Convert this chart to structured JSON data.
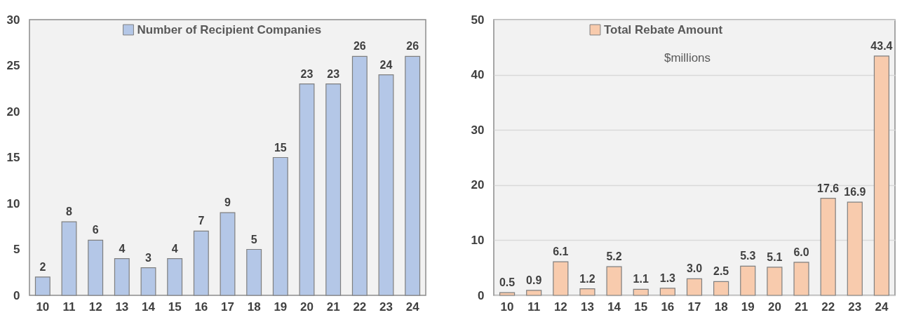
{
  "chart_data": [
    {
      "type": "bar",
      "categories": [
        "10",
        "11",
        "12",
        "13",
        "14",
        "15",
        "16",
        "17",
        "18",
        "19",
        "20",
        "21",
        "22",
        "23",
        "24"
      ],
      "series": [
        {
          "name": "Number of Recipient Companies",
          "color": "#b4c7e7",
          "values": [
            2,
            8,
            6,
            4,
            3,
            4,
            7,
            9,
            5,
            15,
            23,
            23,
            26,
            24,
            26
          ]
        }
      ],
      "ylim": [
        0,
        30
      ],
      "yticks": [
        0,
        5,
        10,
        15,
        20,
        25,
        30
      ],
      "grid": false,
      "legend": "top",
      "data_labels": true
    },
    {
      "type": "bar",
      "categories": [
        "10",
        "11",
        "12",
        "13",
        "14",
        "15",
        "16",
        "17",
        "18",
        "19",
        "20",
        "21",
        "22",
        "23",
        "24"
      ],
      "series": [
        {
          "name": "Total Rebate Amount",
          "color": "#f8cbad",
          "values": [
            0.5,
            0.9,
            6.1,
            1.2,
            5.2,
            1.1,
            1.3,
            3.0,
            2.5,
            5.3,
            5.1,
            6.0,
            17.6,
            16.9,
            43.4
          ],
          "value_labels": [
            "0.5",
            "0.9",
            "6.1",
            "1.2",
            "5.2",
            "1.1",
            "1.3",
            "3.0",
            "2.5",
            "5.3",
            "5.1",
            "6.0",
            "17.6",
            "16.9",
            "43.4"
          ]
        }
      ],
      "ylim": [
        0,
        50
      ],
      "yticks": [
        0,
        10,
        20,
        30,
        40,
        50
      ],
      "grid": "y",
      "legend": "top",
      "annotations": [
        "$millions"
      ]
    }
  ]
}
